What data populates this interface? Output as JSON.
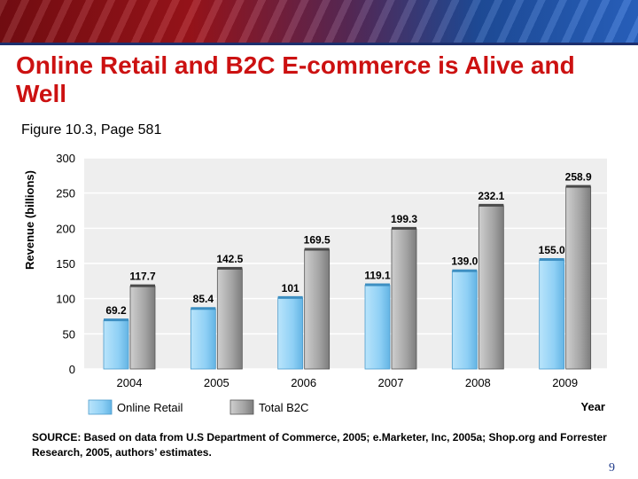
{
  "slide": {
    "title": "Online Retail and B2C E-commerce is Alive and Well",
    "subtitle": "Figure 10.3, Page 581",
    "source": "SOURCE: Based on data from U.S Department of Commerce, 2005; e.Marketer, Inc, 2005a; Shop.org and Forrester Research, 2005, authors’ estimates.",
    "page_number": "9"
  },
  "chart_data": {
    "type": "bar",
    "categories": [
      "2004",
      "2005",
      "2006",
      "2007",
      "2008",
      "2009"
    ],
    "series": [
      {
        "name": "Online Retail",
        "values": [
          69.2,
          85.4,
          101,
          119.1,
          139.0,
          155.0
        ],
        "labels": [
          "69.2",
          "85.4",
          "101",
          "119.1",
          "139.0",
          "155.0"
        ],
        "color": "#8fd0f5"
      },
      {
        "name": "Total B2C",
        "values": [
          117.7,
          142.5,
          169.5,
          199.3,
          232.1,
          258.9
        ],
        "labels": [
          "117.7",
          "142.5",
          "169.5",
          "199.3",
          "232.1",
          "258.9"
        ],
        "color": "#a3a3a3"
      }
    ],
    "ylabel": "Revenue (billions)",
    "xlabel": "Year",
    "ylim": [
      0,
      300
    ],
    "yticks": [
      "0",
      "50",
      "100",
      "150",
      "200",
      "250",
      "300"
    ],
    "grid": true,
    "legend": "bottom"
  }
}
